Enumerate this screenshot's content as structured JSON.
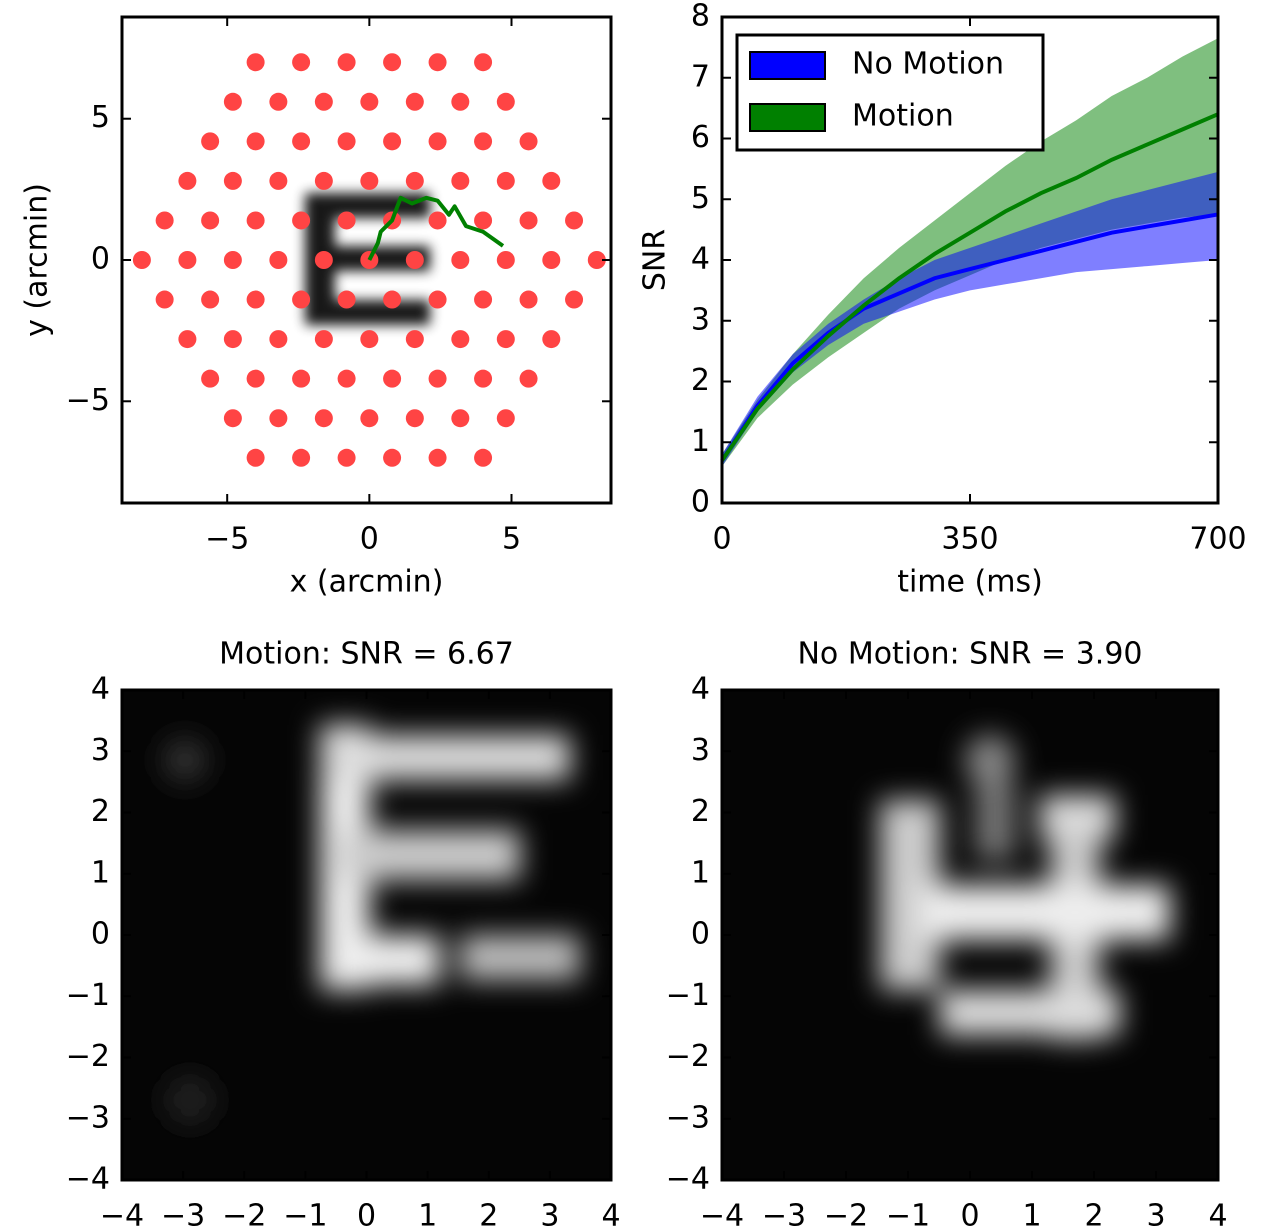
{
  "chart_data": [
    {
      "type": "scatter",
      "xlabel": "x (arcmin)",
      "ylabel": "y (arcmin)",
      "xlim": [
        -8.7,
        8.5
      ],
      "ylim": [
        -8.6,
        8.6
      ],
      "xticks": [
        {
          "value": -5,
          "label": "−5"
        },
        0,
        5
      ],
      "yticks": [
        {
          "value": -5,
          "label": "−5"
        },
        0,
        5
      ],
      "points": {
        "color": "#ff4444",
        "x": [
          -4,
          -2.4,
          -0.8,
          0.8,
          2.4,
          4,
          -4.8,
          -3.2,
          -1.6,
          0,
          1.6,
          3.2,
          4.8,
          -5.6,
          -4,
          -2.4,
          -0.8,
          0.8,
          2.4,
          4,
          5.6,
          -6.4,
          -4.8,
          -3.2,
          -1.6,
          0,
          1.6,
          3.2,
          4.8,
          6.4,
          -7.2,
          -5.6,
          -4,
          -2.4,
          -0.8,
          0.8,
          2.4,
          4,
          5.6,
          7.2,
          -8,
          -6.4,
          -4.8,
          -3.2,
          -1.6,
          0,
          1.6,
          3.2,
          4.8,
          6.4,
          8,
          -7.2,
          -5.6,
          -4,
          -2.4,
          -0.8,
          0.8,
          2.4,
          4,
          5.6,
          7.2,
          -6.4,
          -4.8,
          -3.2,
          -1.6,
          0,
          1.6,
          3.2,
          4.8,
          6.4,
          -5.6,
          -4,
          -2.4,
          -0.8,
          0.8,
          2.4,
          4,
          5.6,
          -4.8,
          -3.2,
          -1.6,
          0,
          1.6,
          3.2,
          4.8,
          -4,
          -2.4,
          -0.8,
          0.8,
          2.4,
          4
        ],
        "y": [
          -7,
          -7,
          -7,
          -7,
          -7,
          -7,
          -5.6,
          -5.6,
          -5.6,
          -5.6,
          -5.6,
          -5.6,
          -5.6,
          -4.2,
          -4.2,
          -4.2,
          -4.2,
          -4.2,
          -4.2,
          -4.2,
          -4.2,
          -2.8,
          -2.8,
          -2.8,
          -2.8,
          -2.8,
          -2.8,
          -2.8,
          -2.8,
          -2.8,
          -1.4,
          -1.4,
          -1.4,
          -1.4,
          -1.4,
          -1.4,
          -1.4,
          -1.4,
          -1.4,
          -1.4,
          0,
          0,
          0,
          0,
          0,
          0,
          0,
          0,
          0,
          0,
          0,
          1.4,
          1.4,
          1.4,
          1.4,
          1.4,
          1.4,
          1.4,
          1.4,
          1.4,
          1.4,
          2.8,
          2.8,
          2.8,
          2.8,
          2.8,
          2.8,
          2.8,
          2.8,
          2.8,
          4.2,
          4.2,
          4.2,
          4.2,
          4.2,
          4.2,
          4.2,
          4.2,
          5.6,
          5.6,
          5.6,
          5.6,
          5.6,
          5.6,
          5.6,
          7,
          7,
          7,
          7,
          7,
          7
        ]
      },
      "path": {
        "color": "#008000",
        "x": [
          0,
          0.3,
          0.4,
          0.8,
          1.1,
          1.5,
          2.0,
          2.4,
          2.8,
          3.0,
          3.4,
          4.0,
          4.7
        ],
        "y": [
          0,
          0.6,
          1.0,
          1.4,
          2.2,
          2.0,
          2.2,
          2.1,
          1.6,
          1.9,
          1.2,
          1.0,
          0.5
        ]
      }
    },
    {
      "type": "line",
      "xlabel": "time (ms)",
      "ylabel": "SNR",
      "xlim": [
        0,
        700
      ],
      "ylim": [
        0,
        8
      ],
      "xticks": [
        0,
        350,
        700
      ],
      "yticks": [
        0,
        1,
        2,
        3,
        4,
        5,
        6,
        7,
        8
      ],
      "legend": "upper left",
      "x": [
        0,
        50,
        100,
        150,
        200,
        250,
        300,
        350,
        400,
        450,
        500,
        550,
        600,
        650,
        700
      ],
      "series": [
        {
          "name": "No Motion",
          "color": "#0000ff",
          "values": [
            0.7,
            1.6,
            2.3,
            2.8,
            3.2,
            3.45,
            3.7,
            3.85,
            4.0,
            4.15,
            4.3,
            4.45,
            4.55,
            4.65,
            4.75
          ],
          "lower": [
            0.6,
            1.5,
            2.15,
            2.6,
            2.95,
            3.15,
            3.35,
            3.5,
            3.6,
            3.7,
            3.8,
            3.85,
            3.9,
            3.95,
            4.0
          ],
          "upper": [
            0.8,
            1.75,
            2.45,
            2.95,
            3.35,
            3.7,
            4.0,
            4.2,
            4.4,
            4.6,
            4.8,
            5.0,
            5.15,
            5.3,
            5.45
          ]
        },
        {
          "name": "Motion",
          "color": "#008000",
          "values": [
            0.7,
            1.55,
            2.2,
            2.75,
            3.25,
            3.7,
            4.1,
            4.45,
            4.8,
            5.1,
            5.35,
            5.65,
            5.9,
            6.15,
            6.4
          ],
          "lower": [
            0.6,
            1.4,
            1.95,
            2.4,
            2.8,
            3.2,
            3.5,
            3.75,
            4.0,
            4.2,
            4.35,
            4.5,
            4.6,
            4.7,
            4.75
          ],
          "upper": [
            0.8,
            1.7,
            2.45,
            3.1,
            3.7,
            4.2,
            4.65,
            5.1,
            5.55,
            5.95,
            6.3,
            6.7,
            7.0,
            7.35,
            7.65
          ]
        }
      ]
    },
    {
      "type": "image",
      "title": "Motion: SNR = 6.67",
      "xlim": [
        -4,
        4
      ],
      "ylim": [
        -4,
        4
      ],
      "xticks": [
        {
          "value": -4,
          "label": "−4"
        },
        {
          "value": -3,
          "label": "−3"
        },
        {
          "value": -2,
          "label": "−2"
        },
        {
          "value": -1,
          "label": "−1"
        },
        0,
        1,
        2,
        3,
        4
      ],
      "yticks": [
        {
          "value": -4,
          "label": "−4"
        },
        {
          "value": -3,
          "label": "−3"
        },
        {
          "value": -2,
          "label": "−2"
        },
        {
          "value": -1,
          "label": "−1"
        },
        0,
        1,
        2,
        3,
        4
      ]
    },
    {
      "type": "image",
      "title": "No Motion: SNR = 3.90",
      "xlim": [
        -4,
        4
      ],
      "ylim": [
        -4,
        4
      ],
      "xticks": [
        {
          "value": -4,
          "label": "−4"
        },
        {
          "value": -3,
          "label": "−3"
        },
        {
          "value": -2,
          "label": "−2"
        },
        {
          "value": -1,
          "label": "−1"
        },
        0,
        1,
        2,
        3,
        4
      ],
      "yticks": [
        {
          "value": -4,
          "label": "−4"
        },
        {
          "value": -3,
          "label": "−3"
        },
        {
          "value": -2,
          "label": "−2"
        },
        {
          "value": -1,
          "label": "−1"
        },
        0,
        1,
        2,
        3,
        4
      ]
    }
  ]
}
